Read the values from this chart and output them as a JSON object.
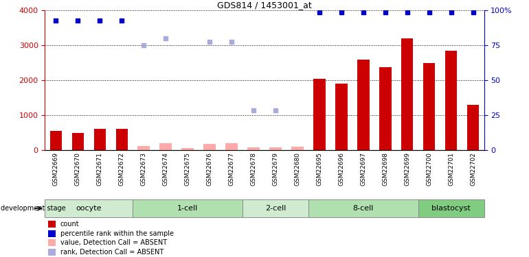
{
  "title": "GDS814 / 1453001_at",
  "samples": [
    "GSM22669",
    "GSM22670",
    "GSM22671",
    "GSM22672",
    "GSM22673",
    "GSM22674",
    "GSM22675",
    "GSM22676",
    "GSM22677",
    "GSM22678",
    "GSM22679",
    "GSM22680",
    "GSM22695",
    "GSM22696",
    "GSM22697",
    "GSM22698",
    "GSM22699",
    "GSM22700",
    "GSM22701",
    "GSM22702"
  ],
  "groups": [
    {
      "label": "oocyte",
      "indices": [
        0,
        1,
        2,
        3
      ]
    },
    {
      "label": "1-cell",
      "indices": [
        4,
        5,
        6,
        7,
        8
      ]
    },
    {
      "label": "2-cell",
      "indices": [
        9,
        10,
        11
      ]
    },
    {
      "label": "8-cell",
      "indices": [
        12,
        13,
        14,
        15,
        16
      ]
    },
    {
      "label": "blastocyst",
      "indices": [
        17,
        18,
        19
      ]
    }
  ],
  "group_colors": [
    "#d0ecd0",
    "#b0e0b0",
    "#d0ecd0",
    "#b0e0b0",
    "#80cc80"
  ],
  "bar_values": [
    550,
    500,
    620,
    620,
    120,
    200,
    60,
    180,
    210,
    80,
    80,
    100,
    2050,
    1900,
    2600,
    2380,
    3200,
    2500,
    2850,
    1300
  ],
  "bar_absent": [
    false,
    false,
    false,
    false,
    true,
    true,
    true,
    true,
    true,
    true,
    true,
    true,
    false,
    false,
    false,
    false,
    false,
    false,
    false,
    false
  ],
  "rank_present": [
    3700,
    3700,
    3700,
    3700,
    null,
    null,
    null,
    null,
    null,
    null,
    null,
    null,
    3950,
    3950,
    3950,
    3950,
    3950,
    3950,
    3950,
    3950
  ],
  "rank_absent": [
    null,
    null,
    null,
    null,
    3000,
    3200,
    null,
    3100,
    3100,
    1150,
    1150,
    null,
    null,
    null,
    null,
    null,
    null,
    null,
    null,
    null
  ],
  "ylim": [
    0,
    4000
  ],
  "y2lim": [
    0,
    100
  ],
  "y2ticks": [
    0,
    25,
    50,
    75,
    100
  ],
  "yticks": [
    0,
    1000,
    2000,
    3000,
    4000
  ],
  "bar_color_present": "#cc0000",
  "bar_color_absent": "#ffaaaa",
  "rank_color_present": "#0000cc",
  "rank_color_absent": "#aaaadd",
  "legend_items": [
    {
      "label": "count",
      "color": "#cc0000"
    },
    {
      "label": "percentile rank within the sample",
      "color": "#0000cc"
    },
    {
      "label": "value, Detection Call = ABSENT",
      "color": "#ffaaaa"
    },
    {
      "label": "rank, Detection Call = ABSENT",
      "color": "#aaaadd"
    }
  ],
  "bg_sample": "#d4d4d4",
  "dev_stage_label": "development stage"
}
